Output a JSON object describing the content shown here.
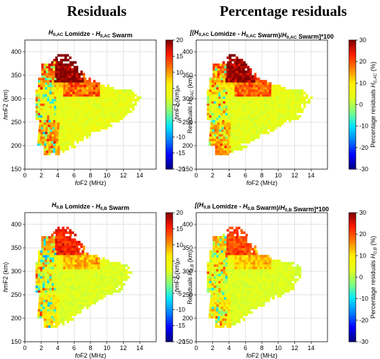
{
  "column_titles": [
    "Residuals",
    "Percentage residuals"
  ],
  "colormap": [
    "#00007f",
    "#0000ff",
    "#007fff",
    "#00e5ff",
    "#7fff7f",
    "#e5ff1a",
    "#ffef00",
    "#ff7f00",
    "#ff1a00",
    "#7f0000"
  ],
  "chart_data": [
    {
      "type": "heatmap",
      "title_parts": [
        [
          "H",
          false
        ],
        [
          "0,AC",
          true
        ],
        [
          " Lomidze - ",
          false
        ],
        [
          "H",
          false
        ],
        [
          "0,AC",
          true
        ],
        [
          " Swarm",
          false
        ]
      ],
      "xlabel": "foF2 (MHz)",
      "ylabel": "hmF2 (km)",
      "xlim": [
        0,
        16
      ],
      "ylim": [
        150,
        425
      ],
      "xticks": [
        0,
        2,
        4,
        6,
        8,
        10,
        12,
        14
      ],
      "yticks": [
        150,
        200,
        250,
        300,
        350,
        400
      ],
      "colorbar_label": "Residuals H0,AC (km)",
      "colorbar_range": [
        -20,
        20
      ],
      "colorbar_ticks": [
        20,
        15,
        10,
        5,
        0,
        -5,
        -10,
        -15,
        -20
      ],
      "grid": true,
      "pattern": {
        "high": 20,
        "mid": 9,
        "low": 3,
        "scatter": 12,
        "extent": 1.0
      }
    },
    {
      "type": "heatmap",
      "title_parts": [
        [
          "[(H",
          false
        ],
        [
          "0,AC",
          true
        ],
        [
          " Lomidze - ",
          false
        ],
        [
          "H",
          false
        ],
        [
          "0,AC",
          true
        ],
        [
          " Swarm)/",
          false
        ],
        [
          "H",
          false
        ],
        [
          "0,AC",
          true
        ],
        [
          " Swarm]*100",
          false
        ]
      ],
      "xlabel": "foF2 (MHz)",
      "ylabel": "hmF2 (km)",
      "xlim": [
        0,
        16
      ],
      "ylim": [
        150,
        425
      ],
      "xticks": [
        0,
        2,
        4,
        6,
        8,
        10,
        12,
        14
      ],
      "yticks": [
        150,
        200,
        250,
        300,
        350,
        400
      ],
      "colorbar_label": "Percentage residuals H0,AC (%)",
      "colorbar_range": [
        -30,
        30
      ],
      "colorbar_ticks": [
        30,
        20,
        10,
        0,
        -10,
        -20,
        -30
      ],
      "grid": true,
      "pattern": {
        "high": 28,
        "mid": 14,
        "low": 4,
        "scatter": 16,
        "extent": 1.0
      }
    },
    {
      "type": "heatmap",
      "title_parts": [
        [
          "H",
          false
        ],
        [
          "0,B",
          true
        ],
        [
          " Lomidze - ",
          false
        ],
        [
          "H",
          false
        ],
        [
          "0,B",
          true
        ],
        [
          " Swarm",
          false
        ]
      ],
      "xlabel": "foF2 (MHz)",
      "ylabel": "hmF2 (km)",
      "xlim": [
        0,
        16
      ],
      "ylim": [
        150,
        425
      ],
      "xticks": [
        0,
        2,
        4,
        6,
        8,
        10,
        12,
        14
      ],
      "yticks": [
        150,
        200,
        250,
        300,
        350,
        400
      ],
      "colorbar_label": "Residuals H0,B (km)",
      "colorbar_range": [
        -20,
        20
      ],
      "colorbar_ticks": [
        20,
        15,
        10,
        5,
        0,
        -5,
        -10,
        -15,
        -20
      ],
      "grid": true,
      "pattern": {
        "high": 15,
        "mid": 6,
        "low": 2,
        "scatter": 12,
        "extent": 0.93
      }
    },
    {
      "type": "heatmap",
      "title_parts": [
        [
          "[(H",
          false
        ],
        [
          "0,B",
          true
        ],
        [
          " Lomidze - ",
          false
        ],
        [
          "H",
          false
        ],
        [
          "0,B",
          true
        ],
        [
          " Swarm)/",
          false
        ],
        [
          "H",
          false
        ],
        [
          "0,B",
          true
        ],
        [
          " Swarm]*100",
          false
        ]
      ],
      "xlabel": "foF2 (MHz)",
      "ylabel": "hmF2 (km)",
      "xlim": [
        0,
        16
      ],
      "ylim": [
        150,
        425
      ],
      "xticks": [
        0,
        2,
        4,
        6,
        8,
        10,
        12,
        14
      ],
      "yticks": [
        150,
        200,
        250,
        300,
        350,
        400
      ],
      "colorbar_label": "Percentage residuals H0,B (%)",
      "colorbar_range": [
        -30,
        30
      ],
      "colorbar_ticks": [
        30,
        20,
        10,
        0,
        -10,
        -20,
        -30
      ],
      "grid": true,
      "pattern": {
        "high": 20,
        "mid": 9,
        "low": 3,
        "scatter": 16,
        "extent": 0.93
      }
    }
  ]
}
